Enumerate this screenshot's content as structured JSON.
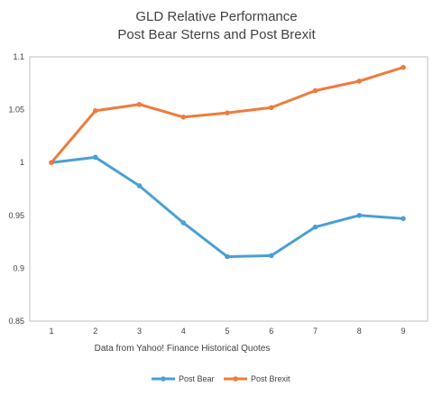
{
  "chart_data": {
    "type": "line",
    "title": "GLD Relative Performance",
    "subtitle": "Post Bear Sterns and Post Brexit",
    "xlabel": "Data from Yahoo! Finance Historical Quotes",
    "ylabel": "",
    "categories": [
      "1",
      "2",
      "3",
      "4",
      "5",
      "6",
      "7",
      "8",
      "9"
    ],
    "x": [
      1,
      2,
      3,
      4,
      5,
      6,
      7,
      8,
      9
    ],
    "ylim": [
      0.85,
      1.1
    ],
    "yticks": [
      0.85,
      0.9,
      0.95,
      1,
      1.05,
      1.1
    ],
    "ytick_labels": [
      "0.85",
      "0.9",
      "0.95",
      "1",
      "1.05",
      "1.1"
    ],
    "grid": false,
    "legend_position": "bottom",
    "series": [
      {
        "name": "Post Bear",
        "color": "#4a9fd4",
        "values": [
          1.0,
          1.005,
          0.978,
          0.943,
          0.911,
          0.912,
          0.939,
          0.95,
          0.947
        ]
      },
      {
        "name": "Post Brexit",
        "color": "#f07a3a",
        "values": [
          1.0,
          1.049,
          1.055,
          1.043,
          1.047,
          1.052,
          1.068,
          1.077,
          1.09
        ]
      }
    ]
  }
}
